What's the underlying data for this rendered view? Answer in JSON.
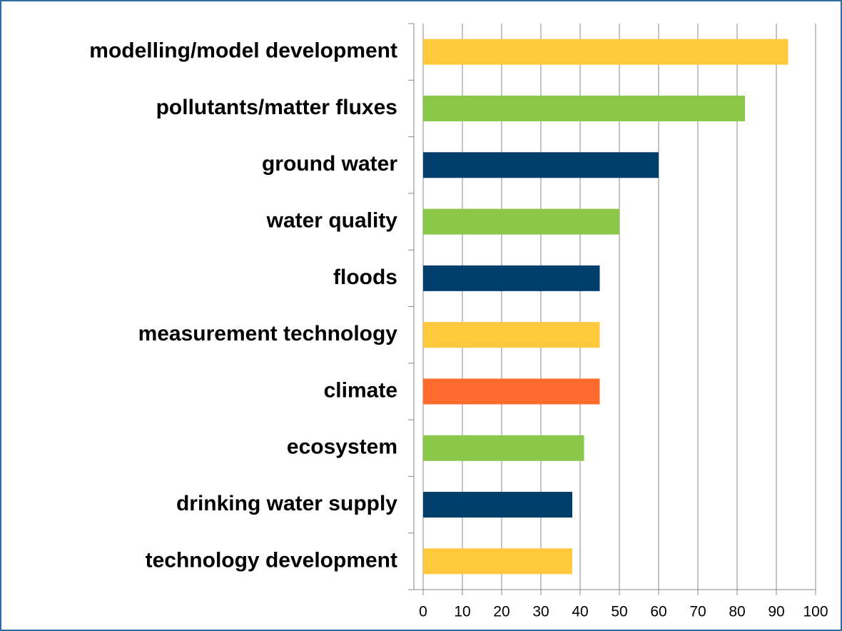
{
  "chart_data": {
    "type": "bar",
    "orientation": "horizontal",
    "categories": [
      "modelling/model development",
      "pollutants/matter fluxes",
      "ground water",
      "water quality",
      "floods",
      "measurement technology",
      "climate",
      "ecosystem",
      "drinking water supply",
      "technology development"
    ],
    "values": [
      93,
      82,
      60,
      50,
      45,
      45,
      45,
      41,
      38,
      38
    ],
    "colors": [
      "#ffc83d",
      "#8bc84a",
      "#003f6b",
      "#8bc84a",
      "#003f6b",
      "#ffc83d",
      "#ff6b2d",
      "#8bc84a",
      "#003f6b",
      "#ffc83d"
    ],
    "xlim": [
      0,
      100
    ],
    "xticks": [
      0,
      10,
      20,
      30,
      40,
      50,
      60,
      70,
      80,
      90,
      100
    ],
    "grid": true
  }
}
